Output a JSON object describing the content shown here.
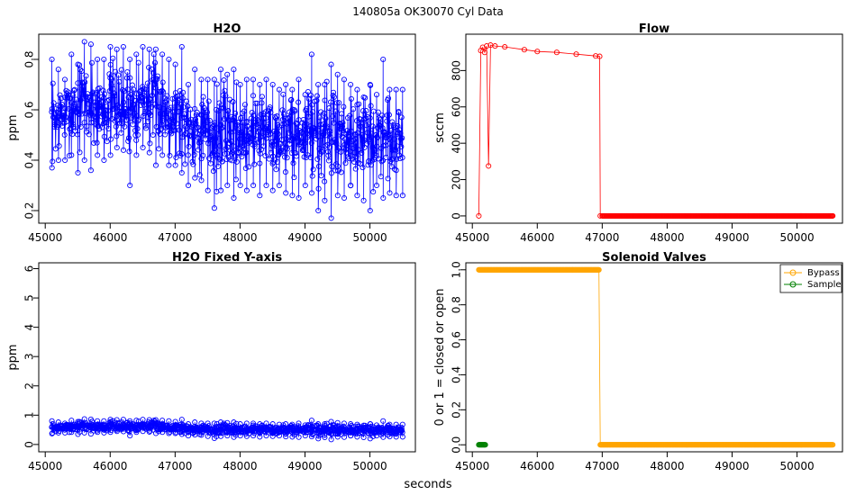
{
  "figure": {
    "header": "140805a    OK30070    Cyl Data",
    "xlabel": "seconds"
  },
  "chart_data": [
    {
      "id": "h2o",
      "type": "line",
      "title": "H2O",
      "xlabel": "",
      "ylabel": "ppm",
      "xlim": [
        44900,
        50700
      ],
      "ylim": [
        0.15,
        0.9
      ],
      "xticks": [
        45000,
        46000,
        47000,
        48000,
        49000,
        50000
      ],
      "yticks": [
        0.2,
        0.4,
        0.6,
        0.8
      ],
      "ytick_labels": [
        "0.2",
        "0.4",
        "0.6",
        "0.8"
      ],
      "series": [
        {
          "color": "#0000ff",
          "marker": "open-circle",
          "x": [
            45100,
            45200,
            45300,
            45400,
            45500,
            45600,
            45700,
            45800,
            45900,
            46000,
            46100,
            46200,
            46300,
            46400,
            46500,
            46600,
            46700,
            46800,
            46900,
            47000,
            47100,
            47200,
            47300,
            47400,
            47500,
            47600,
            47700,
            47800,
            47900,
            48000,
            48100,
            48200,
            48300,
            48400,
            48500,
            48600,
            48700,
            48800,
            48900,
            49000,
            49100,
            49200,
            49300,
            49400,
            49500,
            49600,
            49700,
            49800,
            49900,
            50000,
            50100,
            50200,
            50300,
            50400,
            50500
          ],
          "y_mean": [
            0.55,
            0.57,
            0.58,
            0.6,
            0.62,
            0.63,
            0.62,
            0.6,
            0.61,
            0.63,
            0.62,
            0.6,
            0.62,
            0.63,
            0.64,
            0.63,
            0.62,
            0.61,
            0.6,
            0.58,
            0.56,
            0.55,
            0.54,
            0.52,
            0.5,
            0.5,
            0.51,
            0.52,
            0.52,
            0.51,
            0.5,
            0.52,
            0.53,
            0.52,
            0.5,
            0.5,
            0.51,
            0.5,
            0.5,
            0.52,
            0.51,
            0.5,
            0.5,
            0.49,
            0.5,
            0.51,
            0.5,
            0.49,
            0.5,
            0.49,
            0.48,
            0.5,
            0.49,
            0.48,
            0.5
          ],
          "y_min": [
            0.37,
            0.4,
            0.4,
            0.42,
            0.35,
            0.4,
            0.36,
            0.42,
            0.4,
            0.42,
            0.45,
            0.44,
            0.3,
            0.42,
            0.45,
            0.43,
            0.38,
            0.42,
            0.38,
            0.38,
            0.35,
            0.3,
            0.33,
            0.32,
            0.28,
            0.21,
            0.28,
            0.3,
            0.25,
            0.3,
            0.28,
            0.3,
            0.26,
            0.3,
            0.28,
            0.3,
            0.27,
            0.26,
            0.25,
            0.3,
            0.27,
            0.2,
            0.24,
            0.17,
            0.26,
            0.25,
            0.3,
            0.26,
            0.24,
            0.2,
            0.3,
            0.25,
            0.27,
            0.26,
            0.26
          ],
          "y_max": [
            0.8,
            0.76,
            0.72,
            0.82,
            0.78,
            0.87,
            0.86,
            0.8,
            0.8,
            0.85,
            0.84,
            0.85,
            0.8,
            0.82,
            0.85,
            0.84,
            0.84,
            0.82,
            0.8,
            0.78,
            0.85,
            0.7,
            0.76,
            0.72,
            0.72,
            0.72,
            0.76,
            0.74,
            0.76,
            0.7,
            0.72,
            0.72,
            0.7,
            0.72,
            0.7,
            0.68,
            0.7,
            0.68,
            0.72,
            0.66,
            0.82,
            0.7,
            0.7,
            0.78,
            0.74,
            0.72,
            0.7,
            0.68,
            0.65,
            0.7,
            0.66,
            0.8,
            0.68,
            0.68,
            0.68
          ]
        }
      ]
    },
    {
      "id": "flow",
      "type": "line",
      "title": "Flow",
      "xlabel": "",
      "ylabel": "sccm",
      "xlim": [
        44900,
        50700
      ],
      "ylim": [
        -40,
        1000
      ],
      "xticks": [
        45000,
        46000,
        47000,
        48000,
        49000,
        50000
      ],
      "yticks": [
        0,
        200,
        400,
        600,
        800
      ],
      "ytick_labels": [
        "0",
        "200",
        "400",
        "600",
        "800"
      ],
      "series": [
        {
          "color": "#ff0000",
          "marker": "open-circle",
          "points": [
            [
              45100,
              0
            ],
            [
              45130,
              910
            ],
            [
              45160,
              928
            ],
            [
              45190,
              900
            ],
            [
              45220,
              935
            ],
            [
              45250,
              275
            ],
            [
              45280,
              940
            ],
            [
              45350,
              935
            ],
            [
              45500,
              930
            ],
            [
              45800,
              915
            ],
            [
              46000,
              905
            ],
            [
              46300,
              900
            ],
            [
              46600,
              890
            ],
            [
              46900,
              880
            ],
            [
              46960,
              878
            ],
            [
              46970,
              0
            ],
            [
              47000,
              0
            ],
            [
              50550,
              0
            ]
          ]
        }
      ]
    },
    {
      "id": "h2o-fixed",
      "type": "line",
      "title": "H2O Fixed Y-axis",
      "xlabel": "",
      "ylabel": "ppm",
      "xlim": [
        44900,
        50700
      ],
      "ylim": [
        -0.25,
        6.2
      ],
      "xticks": [
        45000,
        46000,
        47000,
        48000,
        49000,
        50000
      ],
      "yticks": [
        0,
        1,
        2,
        3,
        4,
        5,
        6
      ],
      "ytick_labels": [
        "0",
        "1",
        "2",
        "3",
        "4",
        "5",
        "6"
      ],
      "series_ref": "h2o"
    },
    {
      "id": "valves",
      "type": "line",
      "title": "Solenoid Valves",
      "xlabel": "",
      "ylabel": "0 or 1 = closed or open",
      "xlim": [
        44900,
        50700
      ],
      "ylim": [
        -0.04,
        1.04
      ],
      "xticks": [
        45000,
        46000,
        47000,
        48000,
        49000,
        50000
      ],
      "yticks": [
        0,
        0.2,
        0.4,
        0.6,
        0.8,
        1.0
      ],
      "ytick_labels": [
        "0.0",
        "0.2",
        "0.4",
        "0.6",
        "0.8",
        "1.0"
      ],
      "legend_position": "top-right",
      "series": [
        {
          "name": "Bypass",
          "color": "#ffa500",
          "marker": "open-circle",
          "segments": [
            {
              "x0": 45100,
              "x1": 46950,
              "y": 1
            },
            {
              "x0": 46970,
              "x1": 50550,
              "y": 0
            }
          ]
        },
        {
          "name": "Sample",
          "color": "#008000",
          "marker": "open-circle",
          "segments": [
            {
              "x0": 45100,
              "x1": 45200,
              "y": 0
            }
          ]
        }
      ]
    }
  ]
}
